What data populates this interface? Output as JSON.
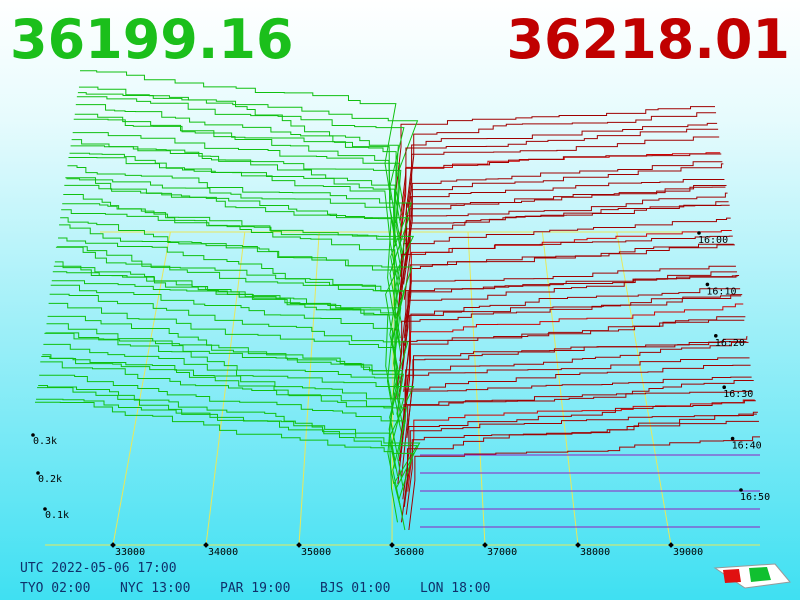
{
  "bid_price": "36199.16",
  "ask_price": "36218.01",
  "price_axis": {
    "ticks": [
      33000,
      34000,
      35000,
      36000,
      37000,
      38000,
      39000
    ]
  },
  "depth_axis": {
    "ticks": [
      "0.1k",
      "0.2k",
      "0.3k"
    ]
  },
  "time_axis": {
    "ticks": [
      "16:00",
      "16:10",
      "16:20",
      "16:30",
      "16:40",
      "16:50"
    ]
  },
  "footer": {
    "utc": "UTC 2022-05-06 17:00",
    "zones": [
      "TYO 02:00",
      "NYC 13:00",
      "PAR 19:00",
      "BJS 01:00",
      "LON 18:00"
    ]
  }
}
